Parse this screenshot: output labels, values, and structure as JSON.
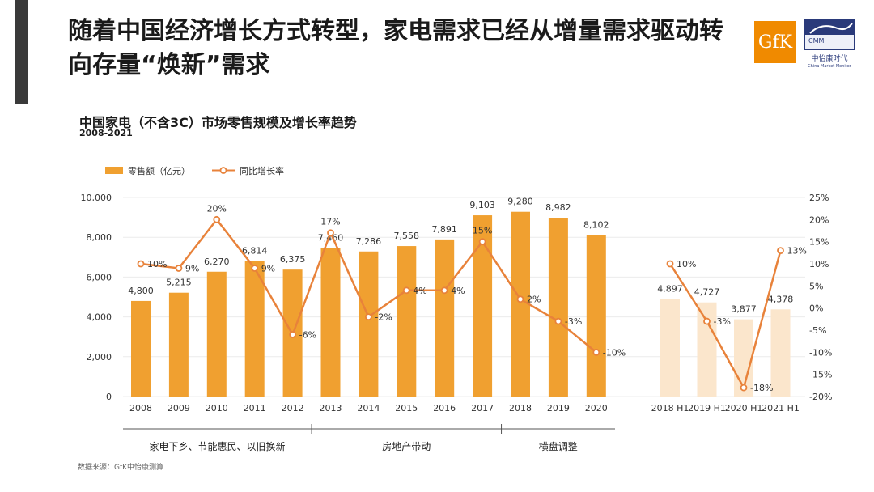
{
  "headline": "随着中国经济增长方式转型，家电需求已经从增量需求驱动转向存量“焕新”需求",
  "logos": {
    "gfk_text": "GfK",
    "cmm_text": "CMM",
    "cmm_caption": "中怡康时代",
    "cmm_subcaption": "China Market Monitor"
  },
  "source": "数据来源：GfK中怡康测算",
  "colors": {
    "bar": "#f0a030",
    "bar_light": "#fbe6cc",
    "line": "#e8823a",
    "header_bar": "#3a3a3a"
  },
  "chart_data": {
    "type": "bar",
    "title": "中国家电（不含3C）市场零售规模及增长率趋势",
    "subtitle": "2008-2021",
    "legend": {
      "position": "top-left",
      "items": [
        {
          "label": "零售额（亿元）",
          "kind": "bar"
        },
        {
          "label": "同比增长率",
          "kind": "line"
        }
      ]
    },
    "categories": [
      "2008",
      "2009",
      "2010",
      "2011",
      "2012",
      "2013",
      "2014",
      "2015",
      "2016",
      "2017",
      "2018",
      "2019",
      "2020",
      "2018 H1",
      "2019 H1",
      "2020 H1",
      "2021 H1"
    ],
    "bar_series": {
      "name": "零售额（亿元）",
      "values": [
        4800,
        5215,
        6270,
        6814,
        6375,
        7460,
        7286,
        7558,
        7891,
        9103,
        9280,
        8982,
        8102,
        4897,
        4727,
        3877,
        4378
      ],
      "labels": [
        "4,800",
        "5,215",
        "6,270",
        "6,814",
        "6,375",
        "7,460",
        "7,286",
        "7,558",
        "7,891",
        "9,103",
        "9,280",
        "8,982",
        "8,102",
        "4,897",
        "4,727",
        "3,877",
        "4,378"
      ]
    },
    "line_series": {
      "name": "同比增长率",
      "values": [
        10,
        9,
        20,
        9,
        -6,
        17,
        -2,
        4,
        4,
        15,
        2,
        -3,
        -10,
        10,
        -3,
        -18,
        13
      ],
      "labels": [
        "10%",
        "9%",
        "20%",
        "9%",
        "-6%",
        "17%",
        "-2%",
        "4%",
        "4%",
        "15%",
        "2%",
        "-3%",
        "-10%",
        "10%",
        "-3%",
        "-18%",
        "13%"
      ]
    },
    "y_left": {
      "range": [
        0,
        10000
      ],
      "ticks": [
        0,
        2000,
        4000,
        6000,
        8000,
        10000
      ],
      "tick_labels": [
        "0",
        "2,000",
        "4,000",
        "6,000",
        "8,000",
        "10,000"
      ]
    },
    "y_right": {
      "range": [
        -20,
        25
      ],
      "ticks": [
        -20,
        -15,
        -10,
        -5,
        0,
        5,
        10,
        15,
        20,
        25
      ],
      "tick_labels": [
        "-20%",
        "-15%",
        "-10%",
        "-5%",
        "0%",
        "5%",
        "10%",
        "15%",
        "20%",
        "25%"
      ]
    },
    "gridlines": true,
    "periods": [
      {
        "label": "家电下乡、节能惠民、以旧换新",
        "from": "2008",
        "to": "2012"
      },
      {
        "label": "房地产带动",
        "from": "2013",
        "to": "2017"
      },
      {
        "label": "横盘调整",
        "from": "2018",
        "to": "2020"
      }
    ]
  }
}
